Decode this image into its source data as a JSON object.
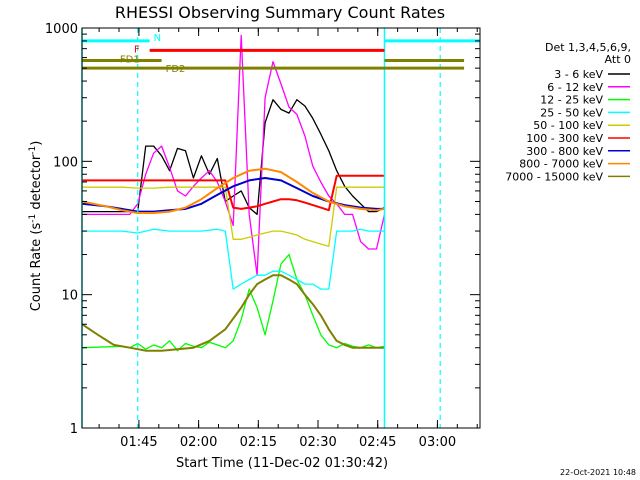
{
  "chart_data": {
    "type": "line",
    "title": "RHESSI Observing Summary Count Rates",
    "xlabel": "Start Time (11-Dec-02 01:30:42)",
    "ylabel_main": "Count Rate (s",
    "ylabel_sup1": "-1",
    "ylabel_mid": " detector",
    "ylabel_sup2": "-1",
    "ylabel_end": ")",
    "yscale": "log",
    "ylim": [
      1,
      1000
    ],
    "xlim_minutes": [
      0,
      100
    ],
    "x_ticks": [
      {
        "label": "01:45",
        "minutes": 14.3
      },
      {
        "label": "02:00",
        "minutes": 29.3
      },
      {
        "label": "02:15",
        "minutes": 44.3
      },
      {
        "label": "02:30",
        "minutes": 59.3
      },
      {
        "label": "02:45",
        "minutes": 74.3
      },
      {
        "label": "03:00",
        "minutes": 89.3
      }
    ],
    "y_ticks": [
      {
        "label": "1",
        "value": 1
      },
      {
        "label": "10",
        "value": 10
      },
      {
        "label": "100",
        "value": 100
      },
      {
        "label": "1000",
        "value": 1000
      }
    ],
    "legend_header": [
      "Det 1,3,4,5,6,9,",
      "Att 0"
    ],
    "legend_placement": "right",
    "series": [
      {
        "name": "3 - 6 keV",
        "color": "#000000",
        "x": [
          0,
          14,
          16,
          18,
          20,
          22,
          24,
          26,
          28,
          30,
          32,
          34,
          36,
          38,
          40,
          42,
          44,
          46,
          48,
          50,
          52,
          54,
          56,
          58,
          60,
          62,
          64,
          66,
          68,
          70,
          72,
          74,
          76
        ],
        "y": [
          42,
          42,
          130,
          130,
          110,
          85,
          125,
          120,
          75,
          110,
          80,
          105,
          50,
          55,
          60,
          45,
          40,
          195,
          290,
          245,
          230,
          290,
          260,
          210,
          160,
          120,
          85,
          65,
          55,
          48,
          42,
          42,
          45
        ]
      },
      {
        "name": "6 - 12 keV",
        "color": "#ff00ff",
        "x": [
          0,
          12,
          14,
          16,
          18,
          20,
          22,
          24,
          26,
          28,
          30,
          32,
          34,
          36,
          38,
          40,
          42,
          44,
          46,
          48,
          50,
          52,
          54,
          56,
          58,
          60,
          62,
          64,
          66,
          68,
          70,
          72,
          74,
          76
        ],
        "y": [
          40,
          40,
          48,
          80,
          115,
          130,
          90,
          60,
          55,
          65,
          75,
          85,
          70,
          50,
          33,
          880,
          40,
          14,
          300,
          560,
          380,
          255,
          225,
          155,
          92,
          70,
          55,
          48,
          40,
          40,
          25,
          22,
          22,
          40
        ]
      },
      {
        "name": "12 - 25 keV",
        "color": "#00ff00",
        "x": [
          0,
          10,
          12,
          14,
          16,
          18,
          20,
          22,
          24,
          26,
          28,
          30,
          32,
          34,
          36,
          38,
          40,
          42,
          44,
          46,
          48,
          50,
          52,
          54,
          56,
          58,
          60,
          62,
          64,
          66,
          68,
          70,
          72,
          74,
          76
        ],
        "y": [
          4.0,
          4.1,
          4.0,
          4.3,
          3.9,
          4.2,
          4.0,
          4.5,
          3.8,
          4.3,
          4.1,
          4.0,
          4.4,
          4.2,
          4.0,
          4.5,
          6.5,
          11,
          8,
          5,
          9,
          17,
          20,
          13,
          10,
          7,
          5,
          4.2,
          4.0,
          4.3,
          4.1,
          4.0,
          4.2,
          4.0,
          4.1
        ]
      },
      {
        "name": "25 - 50 keV",
        "color": "#00ffff",
        "x": [
          0,
          10,
          14,
          18,
          22,
          26,
          30,
          34,
          36,
          38,
          40,
          42,
          44,
          46,
          48,
          50,
          52,
          54,
          56,
          58,
          60,
          62,
          64,
          66,
          68,
          70,
          72,
          74,
          76
        ],
        "y": [
          30,
          30,
          29,
          31,
          30,
          30,
          30,
          31,
          30,
          11,
          12,
          13,
          14,
          14,
          15,
          15,
          14,
          13,
          12,
          12,
          11,
          11,
          30,
          30,
          30,
          31,
          30,
          30,
          30
        ]
      },
      {
        "name": "50 - 100 keV",
        "color": "#cccc00",
        "x": [
          0,
          10,
          14,
          18,
          22,
          26,
          30,
          34,
          36,
          38,
          40,
          42,
          44,
          46,
          48,
          50,
          52,
          54,
          56,
          58,
          60,
          62,
          64,
          66,
          68,
          70,
          72,
          74,
          76
        ],
        "y": [
          64,
          64,
          63,
          63,
          64,
          64,
          64,
          64,
          64,
          26,
          26,
          27,
          28,
          29,
          30,
          30,
          29,
          28,
          26,
          25,
          24,
          23,
          64,
          64,
          64,
          64,
          64,
          64,
          64
        ]
      },
      {
        "name": "100 - 300 keV",
        "color": "#ff0000",
        "x": [
          0,
          10,
          14,
          18,
          22,
          26,
          30,
          34,
          36,
          38,
          40,
          42,
          44,
          46,
          48,
          50,
          52,
          54,
          56,
          58,
          60,
          62,
          64,
          66,
          68,
          70,
          72,
          74,
          76
        ],
        "y": [
          72,
          72,
          72,
          72,
          72,
          72,
          72,
          72,
          72,
          45,
          44,
          45,
          46,
          48,
          50,
          52,
          52,
          51,
          49,
          47,
          45,
          43,
          78,
          78,
          78,
          78,
          78,
          78,
          78
        ]
      },
      {
        "name": "300 - 800 keV",
        "color": "#0000cc",
        "x": [
          0,
          6,
          10,
          14,
          18,
          22,
          26,
          30,
          34,
          38,
          42,
          46,
          50,
          54,
          58,
          62,
          66,
          70,
          74,
          76
        ],
        "y": [
          48,
          46,
          44,
          42,
          42,
          43,
          44,
          48,
          56,
          65,
          72,
          75,
          72,
          63,
          55,
          50,
          47,
          45,
          44,
          44
        ]
      },
      {
        "name": "800 - 7000 keV",
        "color": "#ff8800",
        "x": [
          0,
          6,
          10,
          14,
          18,
          22,
          26,
          30,
          34,
          38,
          42,
          46,
          50,
          54,
          58,
          62,
          66,
          70,
          74,
          76
        ],
        "y": [
          50,
          46,
          43,
          41,
          41,
          42,
          45,
          52,
          63,
          75,
          85,
          88,
          83,
          70,
          58,
          50,
          46,
          44,
          43,
          44
        ]
      },
      {
        "name": "7000 - 15000 keV",
        "color": "#808000",
        "x": [
          0,
          4,
          8,
          12,
          16,
          20,
          24,
          28,
          32,
          36,
          40,
          42,
          44,
          46,
          48,
          50,
          52,
          54,
          56,
          58,
          60,
          62,
          64,
          66,
          68,
          70,
          72,
          74,
          76
        ],
        "y": [
          6.0,
          5.0,
          4.2,
          4.0,
          3.8,
          3.8,
          3.9,
          4.0,
          4.5,
          5.5,
          8.0,
          10,
          12,
          13,
          14,
          14,
          13,
          12,
          10,
          8.5,
          7.0,
          5.5,
          4.5,
          4.2,
          4.0,
          4.0,
          4.0,
          4.0,
          4.0
        ]
      }
    ],
    "annotations": {
      "N": {
        "label": "N",
        "color": "#00ffff",
        "value": 800
      },
      "F": {
        "label": "F",
        "color": "#ff0000",
        "value": 680
      },
      "FD1": {
        "label": "FD1",
        "color": "#808000",
        "value": 570
      },
      "FD2": {
        "label": "FD2",
        "color": "#808000",
        "value": 500
      }
    },
    "vertical_markers": {
      "solid_minutes": [
        0,
        76
      ],
      "dashed_minutes": [
        14,
        90
      ],
      "color": "#00ffff"
    }
  },
  "footer_timestamp": "22-Oct-2021 10:48"
}
